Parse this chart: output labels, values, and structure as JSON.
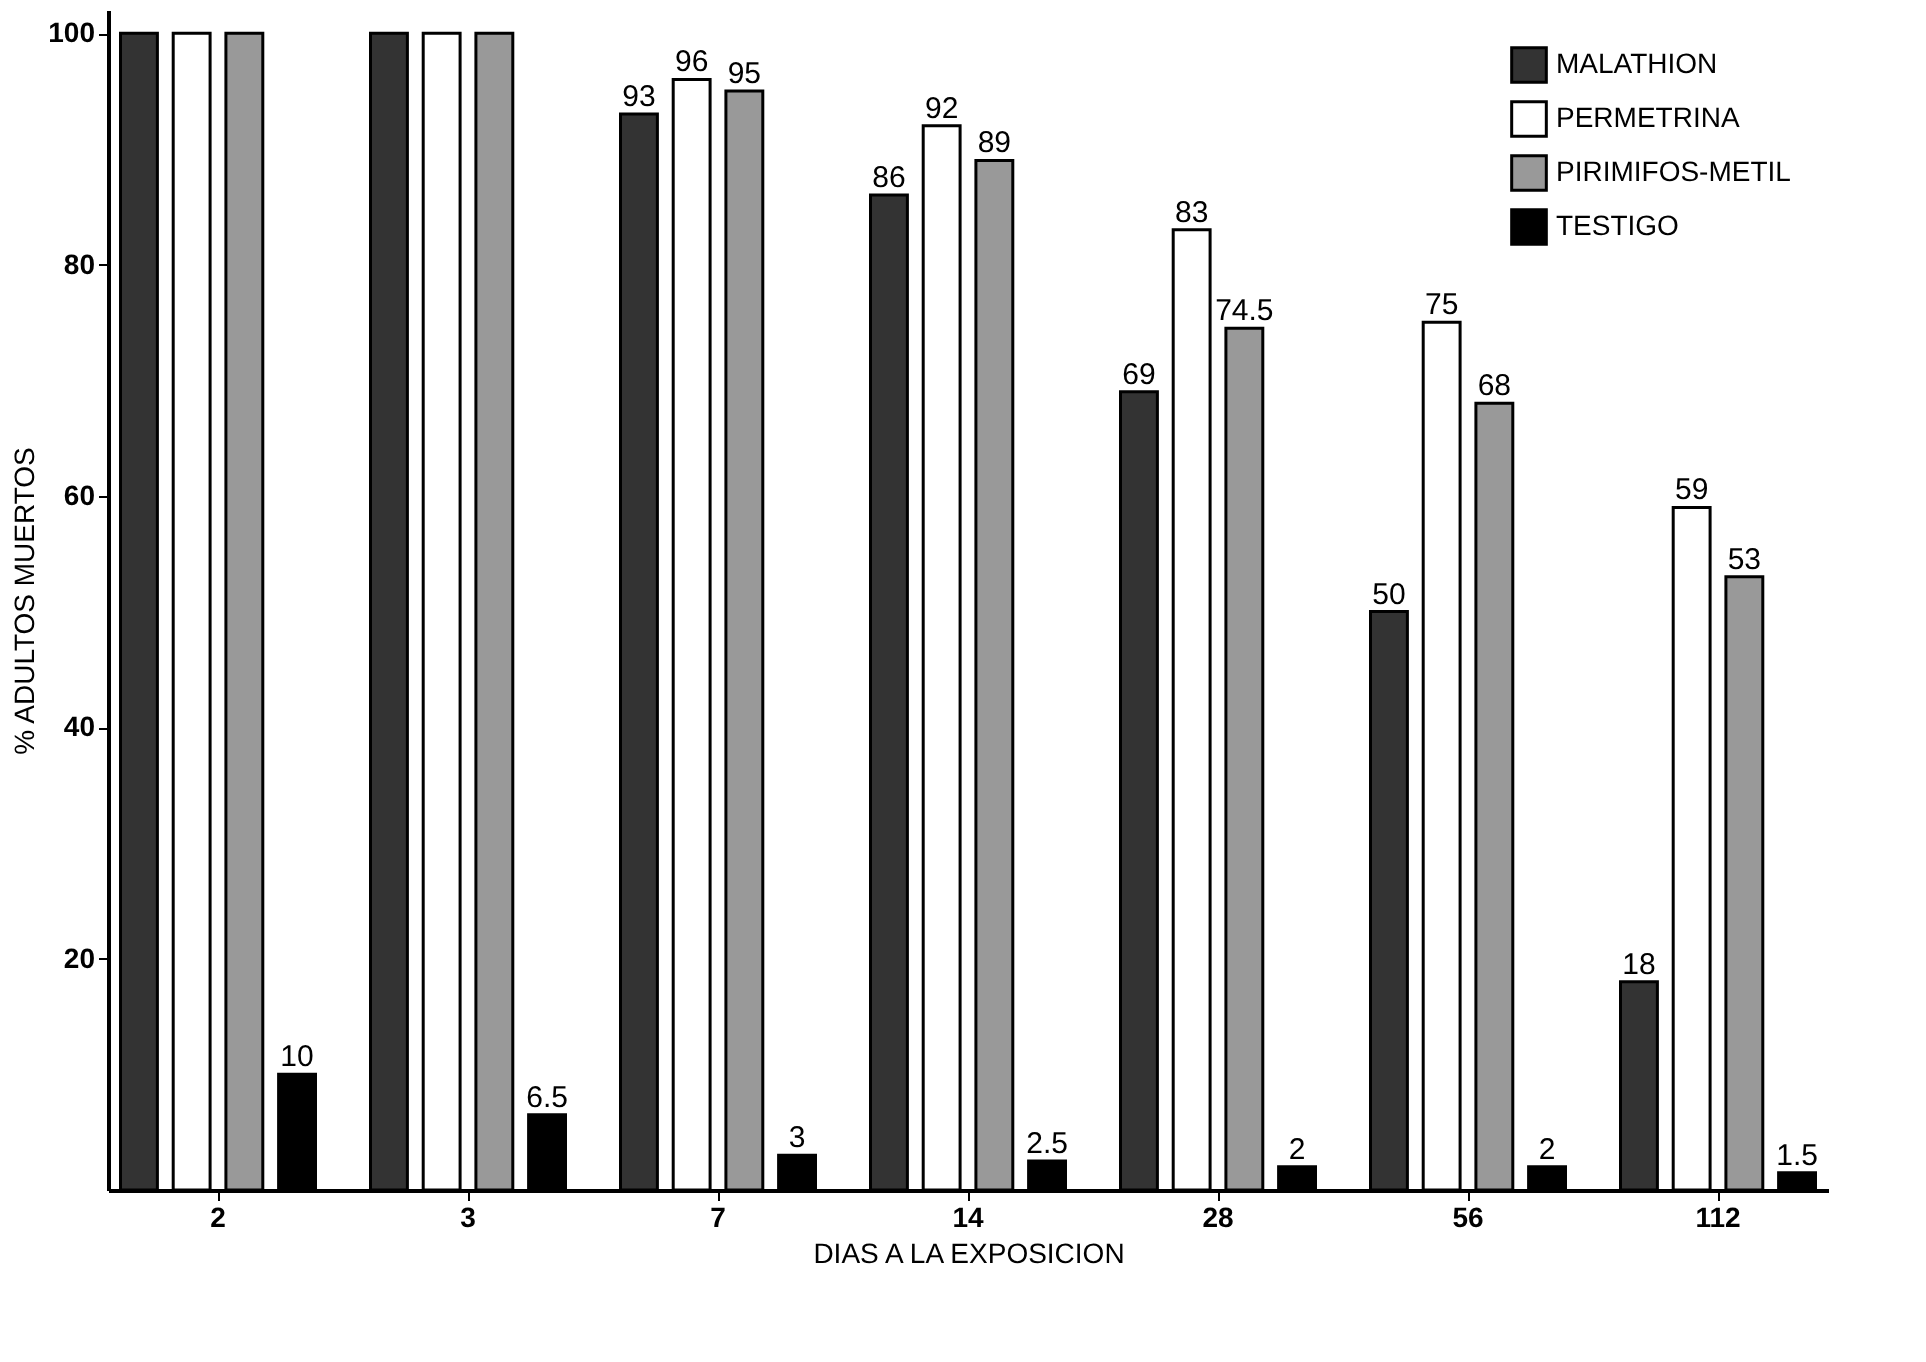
{
  "chart_data": {
    "type": "bar",
    "xlabel": "DIAS A LA EXPOSICION",
    "ylabel": "% ADULTOS MUERTOS",
    "categories": [
      "2",
      "3",
      "7",
      "14",
      "28",
      "56",
      "112"
    ],
    "series": [
      {
        "name": "MALATHION",
        "color": "#333333",
        "values": [
          100,
          100,
          93,
          86,
          69,
          50,
          18
        ],
        "value_labels": [
          null,
          null,
          "93",
          "86",
          "69",
          "50",
          "18"
        ]
      },
      {
        "name": "PERMETRINA",
        "color": "#ffffff",
        "values": [
          100,
          100,
          96,
          92,
          83,
          75,
          59
        ],
        "value_labels": [
          null,
          null,
          "96",
          "92",
          "83",
          "75",
          "59"
        ]
      },
      {
        "name": "PIRIMIFOS-METIL",
        "color": "#999999",
        "values": [
          100,
          100,
          95,
          89,
          74.5,
          68,
          53
        ],
        "value_labels": [
          null,
          null,
          "95",
          "89",
          "74.5",
          "68",
          "53"
        ]
      },
      {
        "name": "TESTIGO",
        "color": "#000000",
        "values": [
          10,
          6.5,
          3,
          2.5,
          2,
          2,
          1.5
        ],
        "value_labels": [
          "10",
          "6.5",
          "3",
          "2.5",
          "2",
          "2",
          "1.5"
        ]
      }
    ],
    "ylim": [
      0,
      102
    ],
    "yticks": [
      20,
      40,
      60,
      80,
      100
    ],
    "legend": "top right"
  }
}
